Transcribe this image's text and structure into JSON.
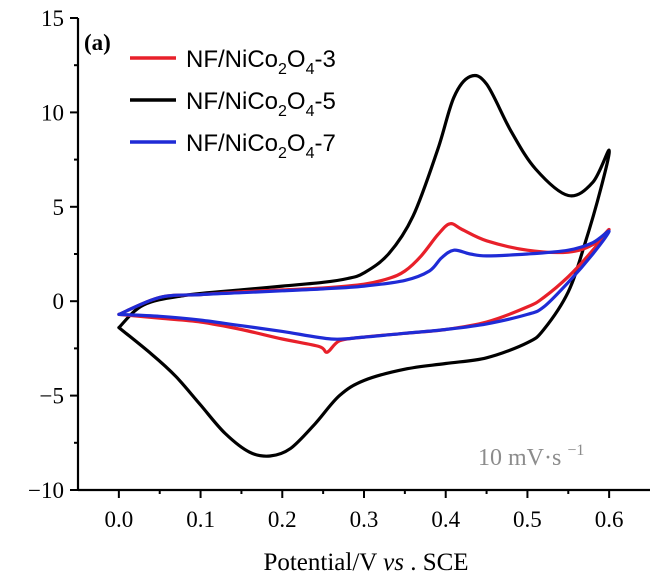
{
  "chart_data": {
    "type": "line",
    "panel_label": "(a)",
    "xlabel": {
      "before": "Potential/V ",
      "italic": "vs",
      "after": ". SCE"
    },
    "ylabel": "",
    "xlim": [
      -0.05,
      0.65
    ],
    "ylim": [
      -10,
      15
    ],
    "xticks": [
      0.0,
      0.1,
      0.2,
      0.3,
      0.4,
      0.5,
      0.6
    ],
    "xtick_labels": [
      "0.0",
      "0.1",
      "0.2",
      "0.3",
      "0.4",
      "0.5",
      "0.6"
    ],
    "yticks": [
      -10,
      -5,
      0,
      5,
      10,
      15
    ],
    "ytick_labels": [
      "−10",
      "−5",
      "0",
      "5",
      "10",
      "15"
    ],
    "grid": false,
    "legend_position": "top-left",
    "annotation": {
      "main": "10 mV·s",
      "sup": "−1"
    },
    "series": [
      {
        "label": {
          "base": "NF/NiCo",
          "sub1": "2",
          "mid": "O",
          "sub2": "4",
          "tail": "-3"
        },
        "color": "#e8202a",
        "points": [
          [
            0.0,
            -0.7
          ],
          [
            0.05,
            0.2
          ],
          [
            0.1,
            0.35
          ],
          [
            0.15,
            0.5
          ],
          [
            0.2,
            0.6
          ],
          [
            0.25,
            0.7
          ],
          [
            0.3,
            0.9
          ],
          [
            0.33,
            1.2
          ],
          [
            0.35,
            1.6
          ],
          [
            0.37,
            2.4
          ],
          [
            0.39,
            3.5
          ],
          [
            0.405,
            4.1
          ],
          [
            0.42,
            3.8
          ],
          [
            0.45,
            3.2
          ],
          [
            0.5,
            2.7
          ],
          [
            0.55,
            2.6
          ],
          [
            0.58,
            3.0
          ],
          [
            0.6,
            3.8
          ],
          [
            0.58,
            2.7
          ],
          [
            0.55,
            1.3
          ],
          [
            0.52,
            0.2
          ],
          [
            0.5,
            -0.3
          ],
          [
            0.45,
            -1.1
          ],
          [
            0.4,
            -1.5
          ],
          [
            0.35,
            -1.7
          ],
          [
            0.3,
            -1.9
          ],
          [
            0.27,
            -2.1
          ],
          [
            0.255,
            -2.7
          ],
          [
            0.245,
            -2.4
          ],
          [
            0.2,
            -2.0
          ],
          [
            0.15,
            -1.5
          ],
          [
            0.1,
            -1.1
          ],
          [
            0.05,
            -0.9
          ],
          [
            0.0,
            -0.7
          ]
        ]
      },
      {
        "label": {
          "base": "NF/NiCo",
          "sub1": "2",
          "mid": "O",
          "sub2": "4",
          "tail": "-5"
        },
        "color": "#000000",
        "points": [
          [
            0.0,
            -1.4
          ],
          [
            0.03,
            -0.2
          ],
          [
            0.08,
            0.3
          ],
          [
            0.15,
            0.6
          ],
          [
            0.2,
            0.8
          ],
          [
            0.25,
            1.0
          ],
          [
            0.28,
            1.2
          ],
          [
            0.3,
            1.5
          ],
          [
            0.33,
            2.5
          ],
          [
            0.36,
            4.5
          ],
          [
            0.39,
            8.0
          ],
          [
            0.41,
            10.8
          ],
          [
            0.43,
            11.9
          ],
          [
            0.45,
            11.5
          ],
          [
            0.48,
            9.0
          ],
          [
            0.51,
            7.0
          ],
          [
            0.55,
            5.6
          ],
          [
            0.58,
            6.3
          ],
          [
            0.6,
            8.0
          ],
          [
            0.59,
            6.0
          ],
          [
            0.57,
            3.0
          ],
          [
            0.55,
            0.5
          ],
          [
            0.52,
            -1.5
          ],
          [
            0.5,
            -2.2
          ],
          [
            0.45,
            -3.0
          ],
          [
            0.4,
            -3.3
          ],
          [
            0.35,
            -3.6
          ],
          [
            0.3,
            -4.2
          ],
          [
            0.27,
            -5.0
          ],
          [
            0.24,
            -6.5
          ],
          [
            0.21,
            -7.8
          ],
          [
            0.185,
            -8.2
          ],
          [
            0.16,
            -8.0
          ],
          [
            0.13,
            -7.0
          ],
          [
            0.1,
            -5.5
          ],
          [
            0.07,
            -4.0
          ],
          [
            0.04,
            -2.8
          ],
          [
            0.0,
            -1.4
          ]
        ]
      },
      {
        "label": {
          "base": "NF/NiCo",
          "sub1": "2",
          "mid": "O",
          "sub2": "4",
          "tail": "-7"
        },
        "color": "#1f2bd6",
        "points": [
          [
            0.0,
            -0.7
          ],
          [
            0.05,
            0.2
          ],
          [
            0.1,
            0.35
          ],
          [
            0.15,
            0.45
          ],
          [
            0.2,
            0.55
          ],
          [
            0.25,
            0.65
          ],
          [
            0.3,
            0.8
          ],
          [
            0.35,
            1.1
          ],
          [
            0.38,
            1.6
          ],
          [
            0.395,
            2.3
          ],
          [
            0.41,
            2.7
          ],
          [
            0.43,
            2.5
          ],
          [
            0.45,
            2.4
          ],
          [
            0.5,
            2.5
          ],
          [
            0.55,
            2.7
          ],
          [
            0.58,
            3.1
          ],
          [
            0.6,
            3.7
          ],
          [
            0.58,
            2.5
          ],
          [
            0.55,
            1.0
          ],
          [
            0.52,
            -0.3
          ],
          [
            0.5,
            -0.7
          ],
          [
            0.45,
            -1.2
          ],
          [
            0.4,
            -1.5
          ],
          [
            0.35,
            -1.7
          ],
          [
            0.3,
            -1.9
          ],
          [
            0.26,
            -2.0
          ],
          [
            0.2,
            -1.6
          ],
          [
            0.15,
            -1.3
          ],
          [
            0.1,
            -1.0
          ],
          [
            0.05,
            -0.8
          ],
          [
            0.0,
            -0.7
          ]
        ]
      }
    ]
  }
}
